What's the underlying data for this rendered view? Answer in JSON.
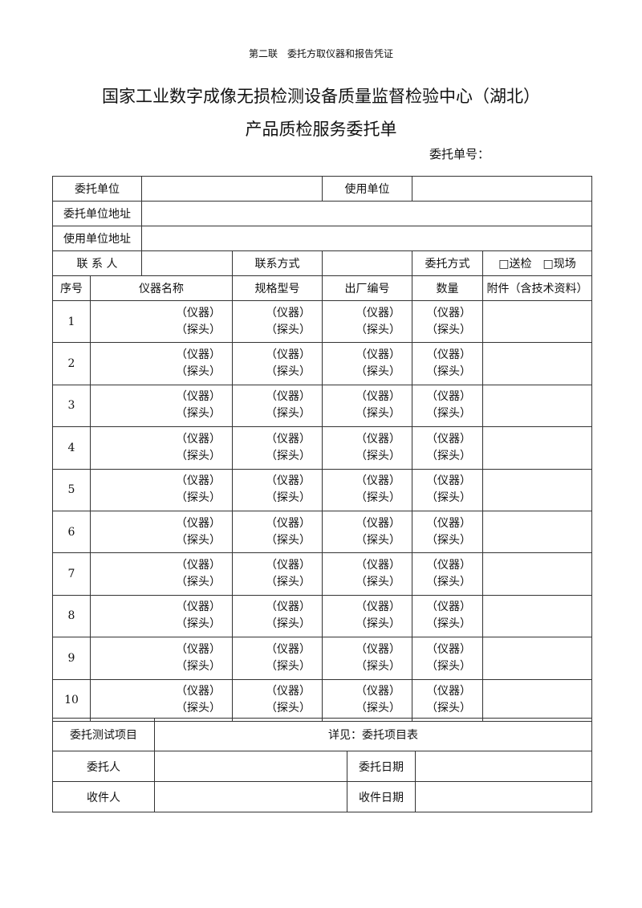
{
  "header": {
    "copy_label": "第二联　委托方取仪器和报告凭证",
    "title": "国家工业数字成像无损检测设备质量监督检验中心（湖北）",
    "subtitle": "产品质检服务委托单",
    "form_no_label": "委托单号："
  },
  "form": {
    "client_unit": "委托单位",
    "user_unit": "使用单位",
    "client_address": "委托单位地址",
    "user_address": "使用单位地址",
    "contact_person": "联 系 人",
    "contact_method": "联系方式",
    "commission_mode": "委托方式",
    "mode_options": "□送检　□现场"
  },
  "items_table": {
    "columns": [
      "序号",
      "仪器名称",
      "规格型号",
      "出厂编号",
      "数量",
      "附件（含技术资料）"
    ],
    "instrument_label": "（仪器）",
    "probe_label": "（探头）",
    "rows": [
      "1",
      "2",
      "3",
      "4",
      "5",
      "6",
      "7",
      "8",
      "9",
      "10"
    ]
  },
  "footer": {
    "test_items": "委托测试项目",
    "test_items_value": "详见：委托项目表",
    "client_person": "委托人",
    "client_date": "委托日期",
    "receiver": "收件人",
    "receive_date": "收件日期"
  }
}
